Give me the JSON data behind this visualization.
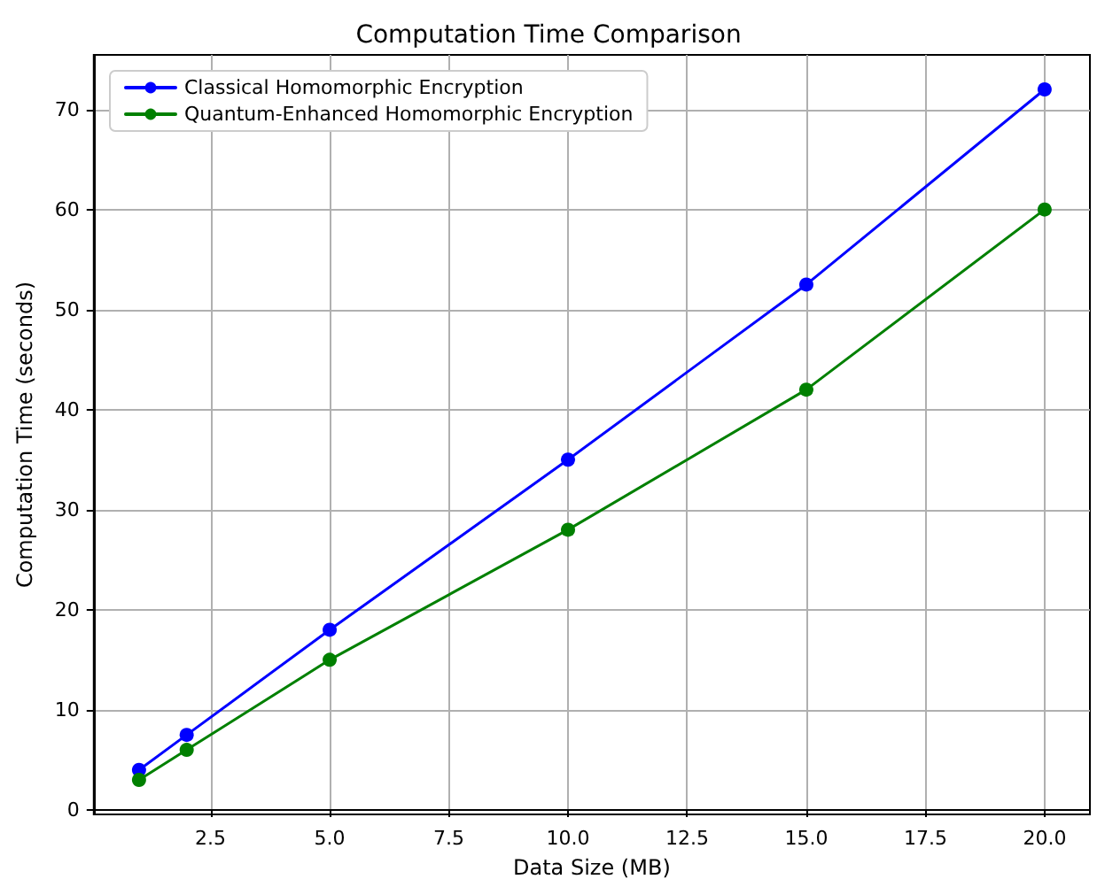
{
  "chart_data": {
    "type": "line",
    "title": "Computation Time Comparison",
    "xlabel": "Data Size (MB)",
    "ylabel": "Computation Time (seconds)",
    "x": [
      1,
      2,
      5,
      10,
      15,
      20
    ],
    "series": [
      {
        "name": "Classical Homomorphic Encryption",
        "color": "#0000ff",
        "values": [
          4,
          7.5,
          18,
          35,
          52.5,
          72
        ]
      },
      {
        "name": "Quantum-Enhanced Homomorphic Encryption",
        "color": "#008000",
        "values": [
          3,
          6,
          15,
          28,
          42,
          60
        ]
      }
    ],
    "xlim": [
      0.05,
      20.95
    ],
    "ylim": [
      -0.45,
      75.45
    ],
    "xticks": [
      2.5,
      {
        "value": 5,
        "label": "5.0"
      },
      7.5,
      {
        "value": 10,
        "label": "10.0"
      },
      12.5,
      {
        "value": 15,
        "label": "15.0"
      },
      17.5,
      {
        "value": 20,
        "label": "20.0"
      }
    ],
    "yticks": [
      0,
      10,
      20,
      30,
      40,
      50,
      60,
      70
    ],
    "grid": true,
    "legend": "top left",
    "marker": "circle",
    "line_style": "solid"
  }
}
